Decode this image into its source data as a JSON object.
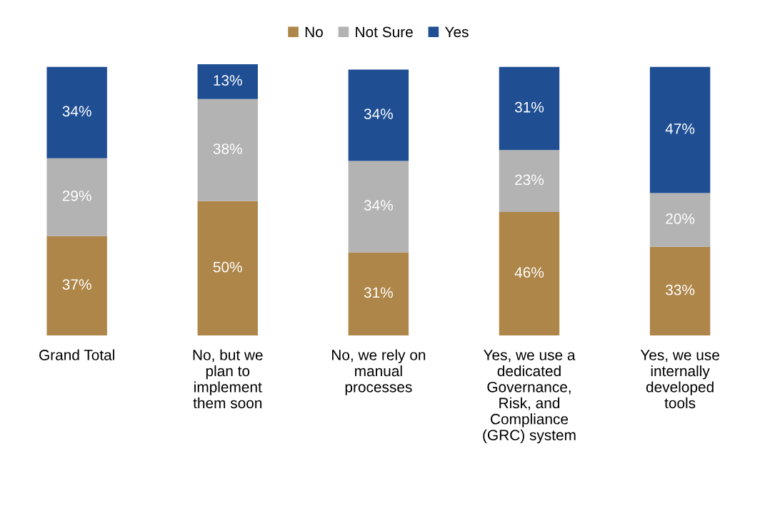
{
  "chart_data": {
    "type": "bar",
    "stacked": true,
    "legend": "top",
    "grid": false,
    "tick_labels": "x",
    "categories": [
      "Grand Total",
      "No, but we\nplan to\nimplement\nthem soon",
      "No, we rely on\nmanual\nprocesses",
      "Yes, we use a\ndedicated\nGovernance,\nRisk, and\nCompliance\n(GRC) system",
      "Yes, we use\ninternally\ndeveloped\ntools"
    ],
    "series": [
      {
        "name": "No",
        "color": "#ae8649",
        "values": [
          37,
          50,
          31,
          46,
          33
        ],
        "value_labels": [
          "37%",
          "50%",
          "31%",
          "46%",
          "33%"
        ]
      },
      {
        "name": "Not Sure",
        "color": "#b3b3b3",
        "values": [
          29,
          38,
          34,
          23,
          20
        ],
        "value_labels": [
          "29%",
          "38%",
          "34%",
          "23%",
          "20%"
        ]
      },
      {
        "name": "Yes",
        "color": "#1f4e93",
        "values": [
          34,
          13,
          34,
          31,
          47
        ],
        "value_labels": [
          "34%",
          "13%",
          "34%",
          "31%",
          "47%"
        ]
      }
    ]
  }
}
